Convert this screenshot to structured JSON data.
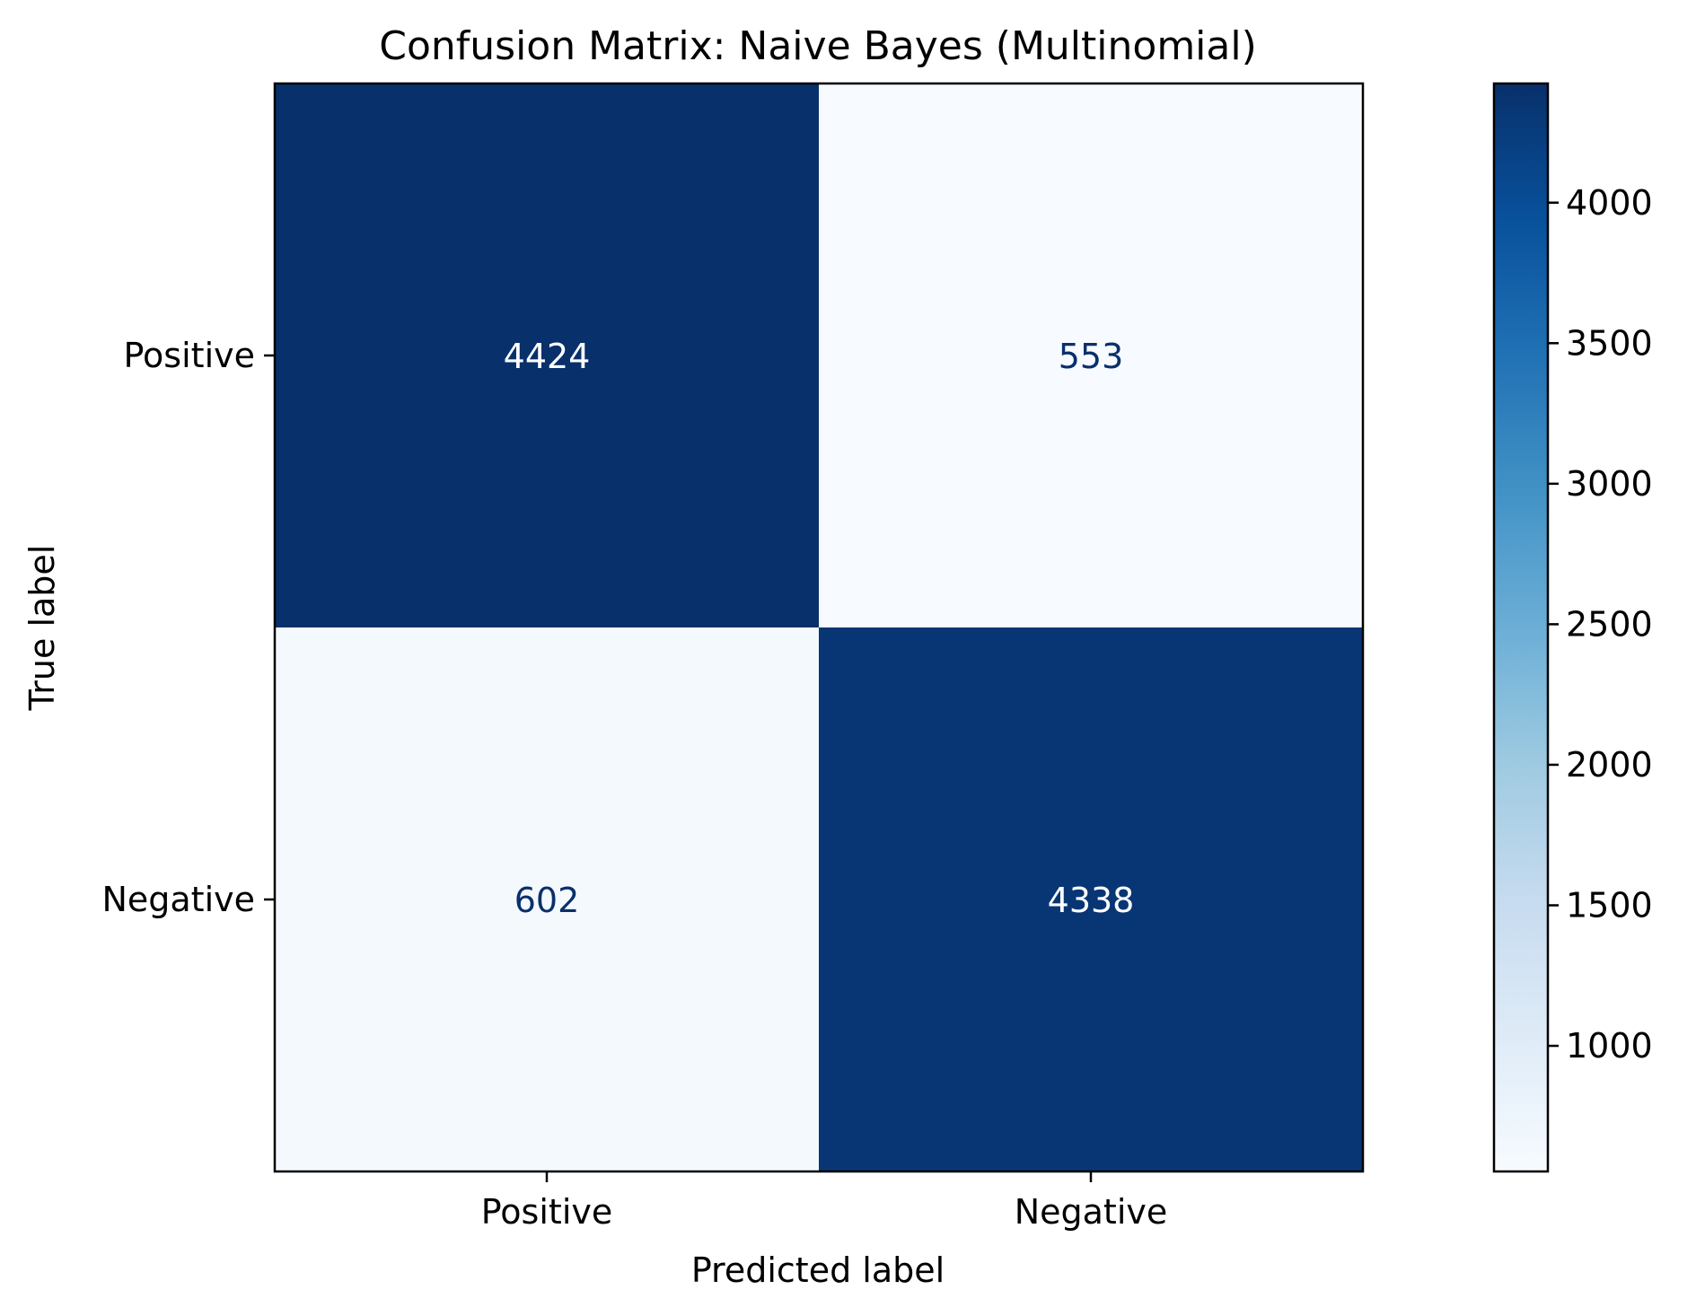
{
  "chart_data": {
    "type": "heatmap",
    "title": "Confusion Matrix: Naive Bayes (Multinomial)",
    "xlabel": "Predicted label",
    "ylabel": "True label",
    "x_categories": [
      "Positive",
      "Negative"
    ],
    "y_categories": [
      "Positive",
      "Negative"
    ],
    "values": [
      [
        4424,
        553
      ],
      [
        602,
        4338
      ]
    ],
    "colormap": "Blues",
    "colorbar": {
      "range": [
        553,
        4424
      ],
      "ticks": [
        1000,
        1500,
        2000,
        2500,
        3000,
        3500,
        4000
      ]
    },
    "colors": {
      "low": "#f7fbff",
      "high": "#08306b",
      "text_on_dark": "#ffffff",
      "text_on_light": "#08306b"
    }
  }
}
